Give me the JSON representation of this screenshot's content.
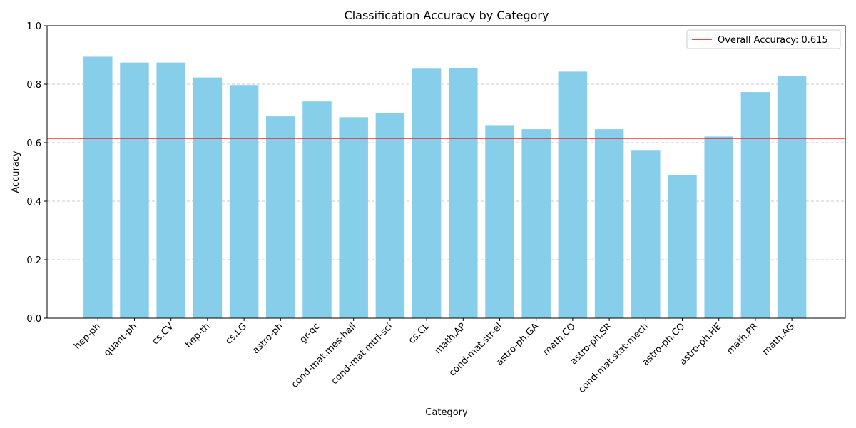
{
  "chart_data": {
    "type": "bar",
    "title": "Classification Accuracy by Category",
    "xlabel": "Category",
    "ylabel": "Accuracy",
    "ylim": [
      0,
      1.0
    ],
    "yticks": [
      "0.0",
      "0.2",
      "0.4",
      "0.6",
      "0.8",
      "1.0"
    ],
    "grid": "y-dashed",
    "legend_position": "top-right",
    "categories": [
      "hep-ph",
      "quant-ph",
      "cs.CV",
      "hep-th",
      "cs.LG",
      "astro-ph",
      "gr-qc",
      "cond-mat.mes-hall",
      "cond-mat.mtrl-sci",
      "cs.CL",
      "math.AP",
      "cond-mat.str-el",
      "astro-ph.GA",
      "math.CO",
      "astro-ph.SR",
      "cond-mat.stat-mech",
      "astro-ph.CO",
      "astro-ph.HE",
      "math.PR",
      "math.AG"
    ],
    "values": [
      0.894,
      0.874,
      0.874,
      0.823,
      0.797,
      0.69,
      0.741,
      0.687,
      0.702,
      0.853,
      0.855,
      0.66,
      0.646,
      0.843,
      0.646,
      0.575,
      0.49,
      0.621,
      0.773,
      0.827
    ],
    "reference_line": {
      "value": 0.615,
      "label": "Overall Accuracy: 0.615"
    },
    "colors": {
      "bar": "#87ceeb",
      "reference_line": "#ff0000",
      "grid": "#c8c8c8",
      "axis": "#000000"
    }
  }
}
